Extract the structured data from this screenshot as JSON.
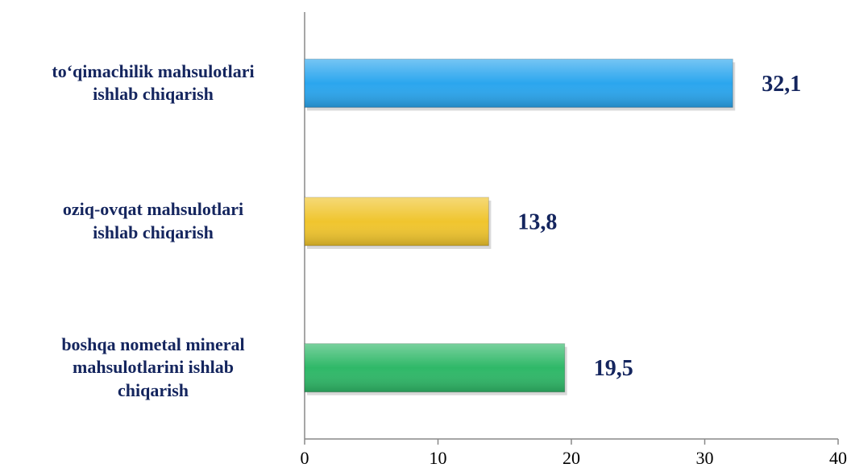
{
  "chart_data": {
    "type": "bar",
    "orientation": "horizontal",
    "categories": [
      "to‘qimachilik  mahsulotlari\nishlab chiqarish",
      "oziq-ovqat mahsulotlari\nishlab chiqarish",
      "boshqa nometal mineral\nmahsulotlarini ishlab\nchiqarish"
    ],
    "values": [
      32.1,
      13.8,
      19.5
    ],
    "value_labels": [
      "32,1",
      "13,8",
      "19,5"
    ],
    "colors": [
      "#2ba6ee",
      "#f0c52e",
      "#2fb868"
    ],
    "xlim": [
      0,
      40
    ],
    "xticks": [
      0,
      10,
      20,
      30,
      40
    ],
    "grid": false
  }
}
